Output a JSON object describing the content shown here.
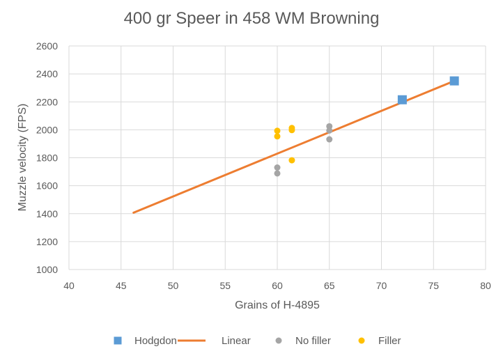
{
  "chart_data": {
    "type": "scatter",
    "title": "400 gr Speer in 458 WM Browning",
    "xlabel": "Grains of H-4895",
    "ylabel": "Muzzle velocity (FPS)",
    "xlim": [
      40,
      80
    ],
    "ylim": [
      1000,
      2600
    ],
    "xticks": [
      "40",
      "45",
      "50",
      "55",
      "60",
      "65",
      "70",
      "75",
      "80"
    ],
    "yticks": [
      "1000",
      "1200",
      "1400",
      "1600",
      "1800",
      "2000",
      "2200",
      "2400",
      "2600"
    ],
    "grid": true,
    "legend_position": "bottom",
    "series": [
      {
        "name": "Hodgdon",
        "kind": "square-marker",
        "color": "#5b9bd5",
        "points": [
          {
            "x": 72,
            "y": 2215
          },
          {
            "x": 77,
            "y": 2350
          }
        ]
      },
      {
        "name": "Linear",
        "kind": "trendline",
        "color": "#ed7d31",
        "points": [
          {
            "x": 46.2,
            "y": 1407
          },
          {
            "x": 77,
            "y": 2350
          }
        ]
      },
      {
        "name": "No filler",
        "kind": "circle-marker",
        "color": "#a5a5a5",
        "points": [
          {
            "x": 60,
            "y": 1730
          },
          {
            "x": 60,
            "y": 1688
          },
          {
            "x": 65,
            "y": 2025
          },
          {
            "x": 65,
            "y": 1995
          },
          {
            "x": 65,
            "y": 1932
          }
        ]
      },
      {
        "name": "Filler",
        "kind": "circle-marker",
        "color": "#ffc000",
        "points": [
          {
            "x": 60,
            "y": 1993
          },
          {
            "x": 60,
            "y": 1953
          },
          {
            "x": 61.4,
            "y": 2013
          },
          {
            "x": 61.4,
            "y": 1998
          },
          {
            "x": 61.4,
            "y": 1782
          }
        ]
      }
    ]
  }
}
